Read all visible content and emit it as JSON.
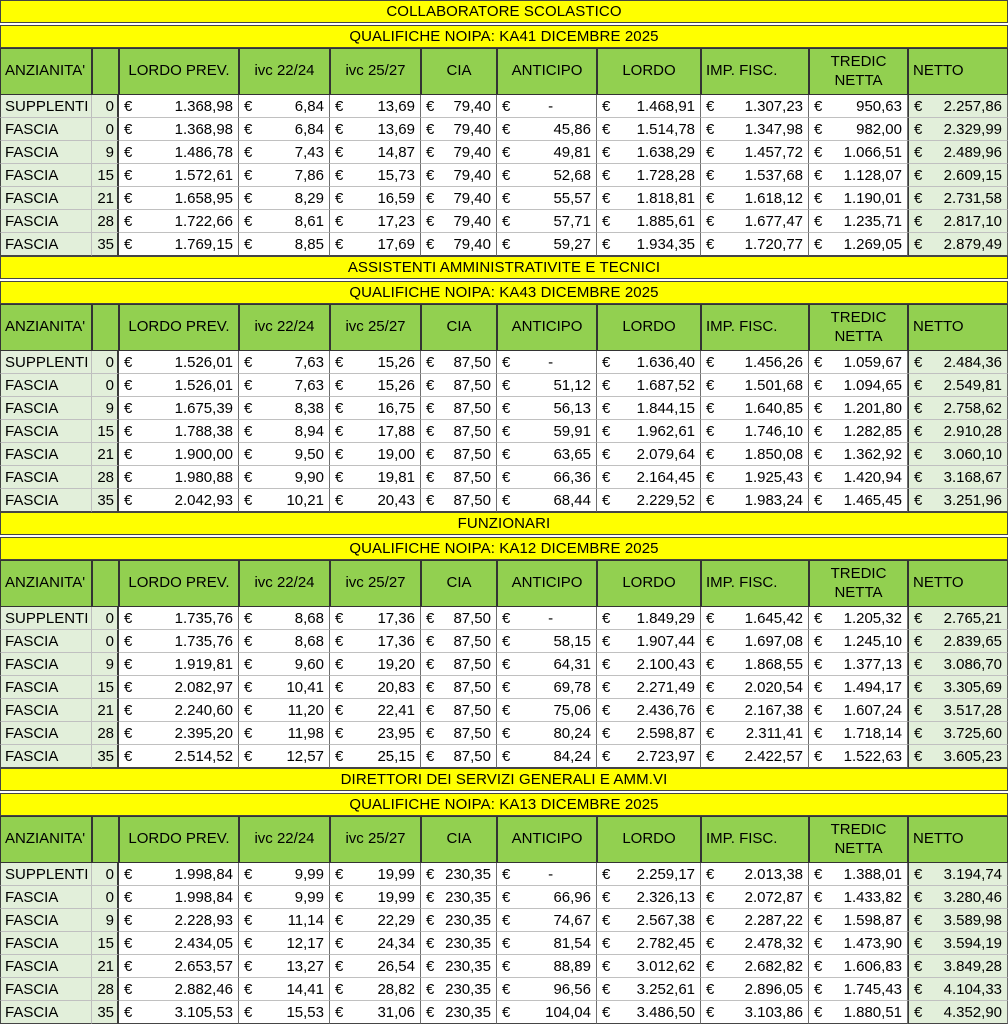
{
  "currency_symbol": "€",
  "colors": {
    "band_yellow": "#FFFF00",
    "header_green": "#92D050",
    "tint_green": "#E2EFDA",
    "grid_dark": "#454545",
    "grid_light": "#C0C0C0"
  },
  "columns": [
    {
      "label": "ANZIANITA'",
      "align": "left"
    },
    {
      "label": "",
      "align": "center"
    },
    {
      "label": "LORDO PREV.",
      "align": "center"
    },
    {
      "label": "ivc 22/24",
      "align": "center"
    },
    {
      "label": "ivc 25/27",
      "align": "center"
    },
    {
      "label": "CIA",
      "align": "center"
    },
    {
      "label": "ANTICIPO",
      "align": "center"
    },
    {
      "label": "LORDO",
      "align": "center"
    },
    {
      "label": "IMP. FISC.",
      "align": "left"
    },
    {
      "label": "TREDIC\nNETTA",
      "align": "center"
    },
    {
      "label": "NETTO",
      "align": "left"
    }
  ],
  "sections": [
    {
      "title": "COLLABORATORE SCOLASTICO",
      "subtitle": "QUALIFICHE NOIPA: KA41 DICEMBRE 2025",
      "rows": [
        {
          "label": "SUPPLENTI",
          "years": "0",
          "values": [
            "1.368,98",
            "6,84",
            "13,69",
            "79,40",
            "-",
            "1.468,91",
            "1.307,23",
            "950,63",
            "2.257,86"
          ]
        },
        {
          "label": "FASCIA",
          "years": "0",
          "values": [
            "1.368,98",
            "6,84",
            "13,69",
            "79,40",
            "45,86",
            "1.514,78",
            "1.347,98",
            "982,00",
            "2.329,99"
          ]
        },
        {
          "label": "FASCIA",
          "years": "9",
          "values": [
            "1.486,78",
            "7,43",
            "14,87",
            "79,40",
            "49,81",
            "1.638,29",
            "1.457,72",
            "1.066,51",
            "2.489,96"
          ]
        },
        {
          "label": "FASCIA",
          "years": "15",
          "values": [
            "1.572,61",
            "7,86",
            "15,73",
            "79,40",
            "52,68",
            "1.728,28",
            "1.537,68",
            "1.128,07",
            "2.609,15"
          ]
        },
        {
          "label": "FASCIA",
          "years": "21",
          "values": [
            "1.658,95",
            "8,29",
            "16,59",
            "79,40",
            "55,57",
            "1.818,81",
            "1.618,12",
            "1.190,01",
            "2.731,58"
          ]
        },
        {
          "label": "FASCIA",
          "years": "28",
          "values": [
            "1.722,66",
            "8,61",
            "17,23",
            "79,40",
            "57,71",
            "1.885,61",
            "1.677,47",
            "1.235,71",
            "2.817,10"
          ]
        },
        {
          "label": "FASCIA",
          "years": "35",
          "values": [
            "1.769,15",
            "8,85",
            "17,69",
            "79,40",
            "59,27",
            "1.934,35",
            "1.720,77",
            "1.269,05",
            "2.879,49"
          ]
        }
      ]
    },
    {
      "title": "ASSISTENTI AMMINISTRATIVITE E TECNICI",
      "subtitle": "QUALIFICHE NOIPA: KA43 DICEMBRE 2025",
      "rows": [
        {
          "label": "SUPPLENTI",
          "years": "0",
          "values": [
            "1.526,01",
            "7,63",
            "15,26",
            "87,50",
            "-",
            "1.636,40",
            "1.456,26",
            "1.059,67",
            "2.484,36"
          ]
        },
        {
          "label": "FASCIA",
          "years": "0",
          "values": [
            "1.526,01",
            "7,63",
            "15,26",
            "87,50",
            "51,12",
            "1.687,52",
            "1.501,68",
            "1.094,65",
            "2.549,81"
          ]
        },
        {
          "label": "FASCIA",
          "years": "9",
          "values": [
            "1.675,39",
            "8,38",
            "16,75",
            "87,50",
            "56,13",
            "1.844,15",
            "1.640,85",
            "1.201,80",
            "2.758,62"
          ]
        },
        {
          "label": "FASCIA",
          "years": "15",
          "values": [
            "1.788,38",
            "8,94",
            "17,88",
            "87,50",
            "59,91",
            "1.962,61",
            "1.746,10",
            "1.282,85",
            "2.910,28"
          ]
        },
        {
          "label": "FASCIA",
          "years": "21",
          "values": [
            "1.900,00",
            "9,50",
            "19,00",
            "87,50",
            "63,65",
            "2.079,64",
            "1.850,08",
            "1.362,92",
            "3.060,10"
          ]
        },
        {
          "label": "FASCIA",
          "years": "28",
          "values": [
            "1.980,88",
            "9,90",
            "19,81",
            "87,50",
            "66,36",
            "2.164,45",
            "1.925,43",
            "1.420,94",
            "3.168,67"
          ]
        },
        {
          "label": "FASCIA",
          "years": "35",
          "values": [
            "2.042,93",
            "10,21",
            "20,43",
            "87,50",
            "68,44",
            "2.229,52",
            "1.983,24",
            "1.465,45",
            "3.251,96"
          ]
        }
      ]
    },
    {
      "title": "FUNZIONARI",
      "subtitle": "QUALIFICHE NOIPA: KA12 DICEMBRE 2025",
      "rows": [
        {
          "label": "SUPPLENTI",
          "years": "0",
          "values": [
            "1.735,76",
            "8,68",
            "17,36",
            "87,50",
            "-",
            "1.849,29",
            "1.645,42",
            "1.205,32",
            "2.765,21"
          ]
        },
        {
          "label": "FASCIA",
          "years": "0",
          "values": [
            "1.735,76",
            "8,68",
            "17,36",
            "87,50",
            "58,15",
            "1.907,44",
            "1.697,08",
            "1.245,10",
            "2.839,65"
          ]
        },
        {
          "label": "FASCIA",
          "years": "9",
          "values": [
            "1.919,81",
            "9,60",
            "19,20",
            "87,50",
            "64,31",
            "2.100,43",
            "1.868,55",
            "1.377,13",
            "3.086,70"
          ]
        },
        {
          "label": "FASCIA",
          "years": "15",
          "values": [
            "2.082,97",
            "10,41",
            "20,83",
            "87,50",
            "69,78",
            "2.271,49",
            "2.020,54",
            "1.494,17",
            "3.305,69"
          ]
        },
        {
          "label": "FASCIA",
          "years": "21",
          "values": [
            "2.240,60",
            "11,20",
            "22,41",
            "87,50",
            "75,06",
            "2.436,76",
            "2.167,38",
            "1.607,24",
            "3.517,28"
          ]
        },
        {
          "label": "FASCIA",
          "years": "28",
          "values": [
            "2.395,20",
            "11,98",
            "23,95",
            "87,50",
            "80,24",
            "2.598,87",
            "2.311,41",
            "1.718,14",
            "3.725,60"
          ]
        },
        {
          "label": "FASCIA",
          "years": "35",
          "values": [
            "2.514,52",
            "12,57",
            "25,15",
            "87,50",
            "84,24",
            "2.723,97",
            "2.422,57",
            "1.522,63",
            "3.605,23"
          ]
        }
      ]
    },
    {
      "title": "DIRETTORI DEI SERVIZI GENERALI E AMM.VI",
      "subtitle": "QUALIFICHE NOIPA: KA13 DICEMBRE 2025",
      "rows": [
        {
          "label": "SUPPLENTI",
          "years": "0",
          "values": [
            "1.998,84",
            "9,99",
            "19,99",
            "230,35",
            "-",
            "2.259,17",
            "2.013,38",
            "1.388,01",
            "3.194,74"
          ]
        },
        {
          "label": "FASCIA",
          "years": "0",
          "values": [
            "1.998,84",
            "9,99",
            "19,99",
            "230,35",
            "66,96",
            "2.326,13",
            "2.072,87",
            "1.433,82",
            "3.280,46"
          ]
        },
        {
          "label": "FASCIA",
          "years": "9",
          "values": [
            "2.228,93",
            "11,14",
            "22,29",
            "230,35",
            "74,67",
            "2.567,38",
            "2.287,22",
            "1.598,87",
            "3.589,98"
          ]
        },
        {
          "label": "FASCIA",
          "years": "15",
          "values": [
            "2.434,05",
            "12,17",
            "24,34",
            "230,35",
            "81,54",
            "2.782,45",
            "2.478,32",
            "1.473,90",
            "3.594,19"
          ]
        },
        {
          "label": "FASCIA",
          "years": "21",
          "values": [
            "2.653,57",
            "13,27",
            "26,54",
            "230,35",
            "88,89",
            "3.012,62",
            "2.682,82",
            "1.606,83",
            "3.849,28"
          ]
        },
        {
          "label": "FASCIA",
          "years": "28",
          "values": [
            "2.882,46",
            "14,41",
            "28,82",
            "230,35",
            "96,56",
            "3.252,61",
            "2.896,05",
            "1.745,43",
            "4.104,33"
          ]
        },
        {
          "label": "FASCIA",
          "years": "35",
          "values": [
            "3.105,53",
            "15,53",
            "31,06",
            "230,35",
            "104,04",
            "3.486,50",
            "3.103,86",
            "1.880,51",
            "4.352,90"
          ]
        }
      ]
    }
  ]
}
